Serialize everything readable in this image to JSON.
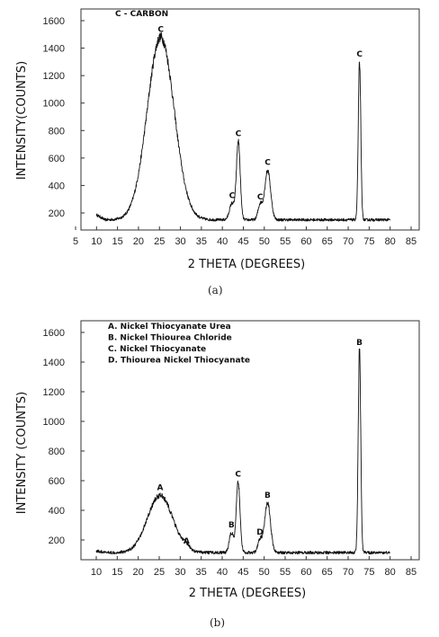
{
  "chart_data": [
    {
      "type": "line",
      "panel": "a",
      "caption": "(a)",
      "xlabel": "2 THETA (DEGREES)",
      "ylabel": "INTENSITY(COUNTS)",
      "xlim": [
        5,
        87
      ],
      "ylim": [
        80,
        1650
      ],
      "xticks": [
        5,
        10,
        15,
        20,
        25,
        30,
        35,
        40,
        45,
        50,
        55,
        60,
        65,
        70,
        75,
        80,
        85
      ],
      "yticks": [
        200,
        400,
        600,
        800,
        1000,
        1200,
        1400,
        1600
      ],
      "legend": [
        "C - CARBON"
      ],
      "baseline": 150,
      "x_range": [
        10,
        80
      ],
      "peaks": [
        {
          "label": "C",
          "x": 25.3,
          "y": 1480,
          "width": 3.2
        },
        {
          "label": "C",
          "x": 42.3,
          "y": 270,
          "width": 0.6
        },
        {
          "label": "C",
          "x": 43.8,
          "y": 720,
          "width": 0.45
        },
        {
          "label": "C",
          "x": 49.0,
          "y": 260,
          "width": 0.5
        },
        {
          "label": "C",
          "x": 50.8,
          "y": 510,
          "width": 0.7
        },
        {
          "label": "C",
          "x": 72.7,
          "y": 1300,
          "width": 0.3
        }
      ]
    },
    {
      "type": "line",
      "panel": "b",
      "caption": "(b)",
      "xlabel": "2 THETA (DEGREES)",
      "ylabel": "INTENSITY (COUNTS)",
      "xlim": [
        5,
        87
      ],
      "ylim": [
        60,
        1700
      ],
      "xticks": [
        10,
        15,
        20,
        25,
        30,
        35,
        40,
        45,
        50,
        55,
        60,
        65,
        70,
        75,
        80,
        85
      ],
      "yticks": [
        200,
        400,
        600,
        800,
        1000,
        1200,
        1400,
        1600
      ],
      "legend": [
        "A. Nickel Thiocyanate Urea",
        "B. Nickel Thiourea Chloride",
        "C. Nickel Thiocyanate",
        "D. Thiourea Nickel Thiocyanate"
      ],
      "baseline": 115,
      "x_range": [
        10,
        80
      ],
      "peaks": [
        {
          "label": "A",
          "x": 25.2,
          "y": 500,
          "width": 3.0
        },
        {
          "label": "A",
          "x": 31.5,
          "y": 140,
          "width": 0.8
        },
        {
          "label": "B",
          "x": 42.2,
          "y": 250,
          "width": 0.5
        },
        {
          "label": "C",
          "x": 43.8,
          "y": 590,
          "width": 0.45
        },
        {
          "label": "D",
          "x": 49.0,
          "y": 200,
          "width": 0.5
        },
        {
          "label": "B",
          "x": 50.8,
          "y": 450,
          "width": 0.7
        },
        {
          "label": "B",
          "x": 72.7,
          "y": 1480,
          "width": 0.3
        }
      ]
    }
  ]
}
